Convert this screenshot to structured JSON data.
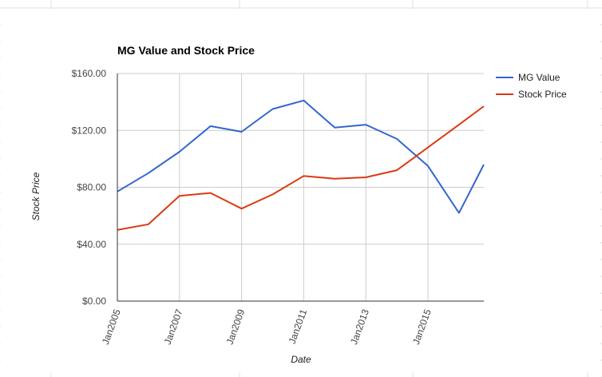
{
  "colors": {
    "mg_value": "#3366cc",
    "stock_price": "#dc3912",
    "grid": "#cccccc",
    "axis": "#333333",
    "sheet_grid": "#e2e2e2"
  },
  "chart_data": {
    "type": "line",
    "title": "MG Value and Stock Price",
    "xlabel": "Date",
    "ylabel": "Stock Price",
    "xlim": [
      2005,
      2016.8
    ],
    "ylim": [
      0,
      160
    ],
    "y_ticks": [
      "$0.00",
      "$40.00",
      "$80.00",
      "$120.00",
      "$160.00"
    ],
    "x_ticks": [
      "Jan2005",
      "Jan2007",
      "Jan2009",
      "Jan2011",
      "Jan2013",
      "Jan2015"
    ],
    "legend_position": "right",
    "grid": true,
    "series": [
      {
        "name": "MG Value",
        "color": "#3366cc",
        "x": [
          2005,
          2006,
          2007,
          2008,
          2009,
          2010,
          2011,
          2012,
          2013,
          2014,
          2015,
          2016,
          2016.8
        ],
        "y": [
          77,
          90,
          105,
          123,
          119,
          135,
          141,
          122,
          124,
          114,
          95,
          62,
          96
        ]
      },
      {
        "name": "Stock Price",
        "color": "#dc3912",
        "x": [
          2005,
          2006,
          2007,
          2008,
          2009,
          2010,
          2011,
          2012,
          2013,
          2014,
          2015,
          2016,
          2016.8
        ],
        "y": [
          50,
          54,
          74,
          76,
          65,
          75,
          88,
          86,
          87,
          92,
          108,
          124,
          137
        ]
      }
    ]
  }
}
